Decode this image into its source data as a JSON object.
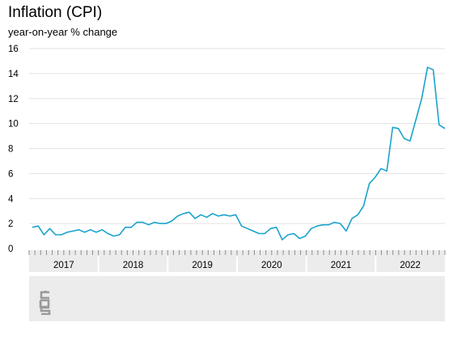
{
  "chart_data": {
    "type": "line",
    "title": "Inflation (CPI)",
    "subtitle": "year-on-year % change",
    "xlabel": "",
    "ylabel": "",
    "ylim": [
      0,
      16
    ],
    "yticks": [
      0,
      2,
      4,
      6,
      8,
      10,
      12,
      14,
      16
    ],
    "x_range": [
      "2017-01",
      "2022-12"
    ],
    "x_labels": [
      "2017",
      "2018",
      "2019",
      "2020",
      "2021",
      "2022"
    ],
    "grid": "horizontal",
    "legend": "none",
    "line_color": "#1aa3cc",
    "series": [
      {
        "x": [
          "2017-01",
          "2017-02",
          "2017-03",
          "2017-04",
          "2017-05",
          "2017-06",
          "2017-07",
          "2017-08",
          "2017-09",
          "2017-10",
          "2017-11",
          "2017-12",
          "2018-01",
          "2018-02",
          "2018-03",
          "2018-04",
          "2018-05",
          "2018-06",
          "2018-07",
          "2018-08",
          "2018-09",
          "2018-10",
          "2018-11",
          "2018-12",
          "2019-01",
          "2019-02",
          "2019-03",
          "2019-04",
          "2019-05",
          "2019-06",
          "2019-07",
          "2019-08",
          "2019-09",
          "2019-10",
          "2019-11",
          "2019-12",
          "2020-01",
          "2020-02",
          "2020-03",
          "2020-04",
          "2020-05",
          "2020-06",
          "2020-07",
          "2020-08",
          "2020-09",
          "2020-10",
          "2020-11",
          "2020-12",
          "2021-01",
          "2021-02",
          "2021-03",
          "2021-04",
          "2021-05",
          "2021-06",
          "2021-07",
          "2021-08",
          "2021-09",
          "2021-10",
          "2021-11",
          "2021-12",
          "2022-01",
          "2022-02",
          "2022-03",
          "2022-04",
          "2022-05",
          "2022-06",
          "2022-07",
          "2022-08",
          "2022-09",
          "2022-10",
          "2022-11",
          "2022-12"
        ],
        "values": [
          1.7,
          1.8,
          1.1,
          1.6,
          1.1,
          1.1,
          1.3,
          1.4,
          1.5,
          1.3,
          1.5,
          1.3,
          1.5,
          1.2,
          1.0,
          1.1,
          1.7,
          1.7,
          2.1,
          2.1,
          1.9,
          2.1,
          2.0,
          2.0,
          2.2,
          2.6,
          2.8,
          2.9,
          2.4,
          2.7,
          2.5,
          2.8,
          2.6,
          2.7,
          2.6,
          2.7,
          1.8,
          1.6,
          1.4,
          1.2,
          1.2,
          1.6,
          1.7,
          0.7,
          1.1,
          1.2,
          0.8,
          1.0,
          1.6,
          1.8,
          1.9,
          1.9,
          2.1,
          2.0,
          1.4,
          2.4,
          2.7,
          3.4,
          5.2,
          5.7,
          6.4,
          6.2,
          9.7,
          9.6,
          8.8,
          8.6,
          10.3,
          12.0,
          14.5,
          14.3,
          9.9,
          9.6
        ]
      }
    ]
  }
}
